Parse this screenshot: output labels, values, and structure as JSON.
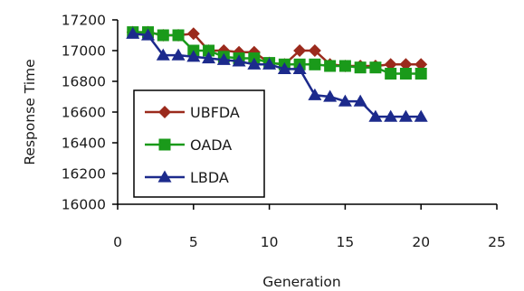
{
  "chart_data": {
    "type": "line",
    "title": "",
    "xlabel": "Generation",
    "ylabel": "Response Time",
    "xlim": [
      0,
      25
    ],
    "ylim": [
      16000,
      17200
    ],
    "xticks": [
      0,
      5,
      10,
      15,
      20,
      25
    ],
    "yticks": [
      16000,
      16200,
      16400,
      16600,
      16800,
      17000,
      17200
    ],
    "grid": false,
    "legend_position": "left",
    "x": [
      1,
      2,
      3,
      4,
      5,
      6,
      7,
      8,
      9,
      10,
      11,
      12,
      13,
      14,
      15,
      16,
      17,
      18,
      19,
      20
    ],
    "series": [
      {
        "name": "UBFDA",
        "color": "#9b2a1c",
        "marker": "diamond",
        "values": [
          17120,
          17120,
          17100,
          17100,
          17110,
          17000,
          17000,
          16990,
          16990,
          16920,
          16910,
          17000,
          17000,
          16910,
          16900,
          16900,
          16900,
          16910,
          16910,
          16910
        ]
      },
      {
        "name": "OADA",
        "color": "#1a9a1a",
        "marker": "square",
        "values": [
          17120,
          17120,
          17100,
          17100,
          17000,
          17000,
          16960,
          16950,
          16950,
          16920,
          16910,
          16910,
          16910,
          16900,
          16900,
          16890,
          16890,
          16850,
          16850,
          16850
        ]
      },
      {
        "name": "LBDA",
        "color": "#1c2a8c",
        "marker": "triangle",
        "values": [
          17110,
          17100,
          16970,
          16970,
          16960,
          16950,
          16940,
          16930,
          16910,
          16910,
          16880,
          16880,
          16710,
          16700,
          16670,
          16670,
          16570,
          16570,
          16570,
          16570
        ]
      }
    ]
  }
}
